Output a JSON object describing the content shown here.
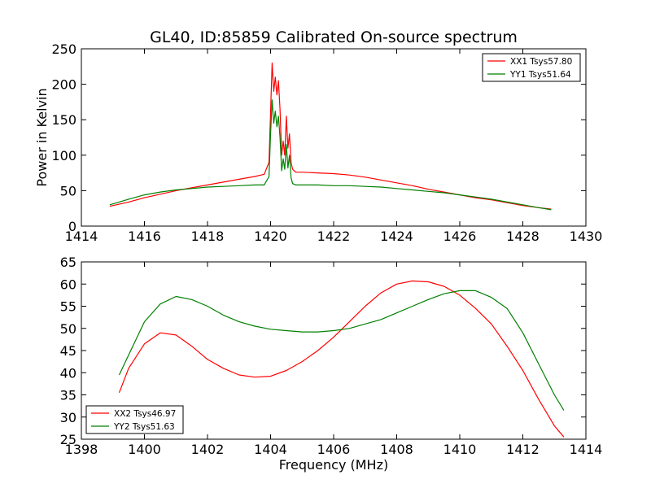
{
  "figure_title": "GL40, ID:85859 Calibrated On-source spectrum",
  "chart_data": [
    {
      "type": "line",
      "title": "GL40, ID:85859 Calibrated On-source spectrum",
      "xlabel": "",
      "ylabel": "Power in Kelvin",
      "xlim": [
        1414,
        1430
      ],
      "ylim": [
        0,
        250
      ],
      "xticks": [
        1414,
        1416,
        1418,
        1420,
        1422,
        1424,
        1426,
        1428,
        1430
      ],
      "yticks": [
        0,
        50,
        100,
        150,
        200,
        250
      ],
      "grid": false,
      "legend_position": "top-right",
      "series": [
        {
          "name": "XX1 Tsys57.80",
          "color": "#ff0000",
          "x": [
            1414.9,
            1415.5,
            1416.0,
            1416.5,
            1417.0,
            1417.5,
            1418.0,
            1418.5,
            1419.0,
            1419.5,
            1419.8,
            1419.95,
            1420.0,
            1420.05,
            1420.1,
            1420.15,
            1420.2,
            1420.25,
            1420.3,
            1420.35,
            1420.4,
            1420.45,
            1420.5,
            1420.55,
            1420.6,
            1420.65,
            1420.7,
            1420.8,
            1421.0,
            1421.5,
            1422.0,
            1422.5,
            1423.0,
            1423.5,
            1424.0,
            1424.5,
            1425.0,
            1425.5,
            1426.0,
            1426.5,
            1427.0,
            1427.5,
            1428.0,
            1428.5,
            1428.9
          ],
          "y": [
            28,
            34,
            40,
            45,
            50,
            54,
            58,
            62,
            66,
            70,
            73,
            90,
            160,
            230,
            190,
            210,
            185,
            205,
            165,
            100,
            120,
            100,
            155,
            110,
            130,
            90,
            80,
            76,
            76,
            75,
            74,
            72,
            69,
            65,
            61,
            57,
            52,
            48,
            44,
            40,
            37,
            33,
            29,
            26,
            24
          ]
        },
        {
          "name": "YY1 Tsys51.64",
          "color": "#008000",
          "x": [
            1414.9,
            1415.5,
            1416.0,
            1416.5,
            1417.0,
            1417.5,
            1418.0,
            1418.5,
            1419.0,
            1419.5,
            1419.8,
            1419.95,
            1420.0,
            1420.05,
            1420.1,
            1420.15,
            1420.2,
            1420.25,
            1420.3,
            1420.35,
            1420.4,
            1420.45,
            1420.5,
            1420.55,
            1420.6,
            1420.65,
            1420.7,
            1420.8,
            1421.0,
            1421.5,
            1422.0,
            1422.5,
            1423.0,
            1423.5,
            1424.0,
            1424.5,
            1425.0,
            1425.5,
            1426.0,
            1426.5,
            1427.0,
            1427.5,
            1428.0,
            1428.5,
            1428.9
          ],
          "y": [
            30,
            38,
            44,
            48,
            51,
            53,
            55,
            56,
            57,
            58,
            58,
            70,
            130,
            178,
            145,
            162,
            140,
            155,
            125,
            78,
            95,
            80,
            115,
            82,
            100,
            68,
            60,
            58,
            58,
            58,
            57,
            57,
            56,
            55,
            53,
            51,
            49,
            47,
            44,
            41,
            38,
            34,
            30,
            26,
            23
          ]
        }
      ]
    },
    {
      "type": "line",
      "title": "",
      "xlabel": "Frequency (MHz)",
      "ylabel": "",
      "xlim": [
        1398,
        1414
      ],
      "ylim": [
        25,
        65
      ],
      "xticks": [
        1398,
        1400,
        1402,
        1404,
        1406,
        1408,
        1410,
        1412,
        1414
      ],
      "yticks": [
        25,
        30,
        35,
        40,
        45,
        50,
        55,
        60,
        65
      ],
      "grid": false,
      "legend_position": "bottom-left",
      "series": [
        {
          "name": "XX2 Tsys46.97",
          "color": "#ff0000",
          "x": [
            1399.2,
            1399.5,
            1400.0,
            1400.5,
            1401.0,
            1401.5,
            1402.0,
            1402.5,
            1403.0,
            1403.5,
            1404.0,
            1404.5,
            1405.0,
            1405.5,
            1406.0,
            1406.5,
            1407.0,
            1407.5,
            1408.0,
            1408.5,
            1409.0,
            1409.5,
            1410.0,
            1410.5,
            1411.0,
            1411.5,
            1412.0,
            1412.5,
            1413.0,
            1413.3
          ],
          "y": [
            35.5,
            41,
            46.5,
            49,
            48.5,
            46,
            43,
            41,
            39.5,
            39,
            39.2,
            40.5,
            42.5,
            45,
            48,
            51.5,
            55,
            58,
            60,
            60.7,
            60.5,
            59.5,
            57.5,
            54.5,
            51,
            46,
            40.5,
            34,
            28,
            25.5
          ]
        },
        {
          "name": "YY2 Tsys51.63",
          "color": "#008000",
          "x": [
            1399.2,
            1399.5,
            1400.0,
            1400.5,
            1401.0,
            1401.5,
            1402.0,
            1402.5,
            1403.0,
            1403.5,
            1404.0,
            1404.5,
            1405.0,
            1405.5,
            1406.0,
            1406.5,
            1407.0,
            1407.5,
            1408.0,
            1408.5,
            1409.0,
            1409.5,
            1410.0,
            1410.5,
            1411.0,
            1411.5,
            1412.0,
            1412.5,
            1413.0,
            1413.3
          ],
          "y": [
            39.5,
            44,
            51.5,
            55.5,
            57.2,
            56.5,
            55,
            53,
            51.5,
            50.5,
            49.8,
            49.5,
            49.2,
            49.2,
            49.5,
            50,
            51,
            52,
            53.5,
            55,
            56.5,
            57.8,
            58.5,
            58.5,
            57,
            54.5,
            49,
            42,
            35,
            31.5
          ]
        }
      ]
    }
  ]
}
